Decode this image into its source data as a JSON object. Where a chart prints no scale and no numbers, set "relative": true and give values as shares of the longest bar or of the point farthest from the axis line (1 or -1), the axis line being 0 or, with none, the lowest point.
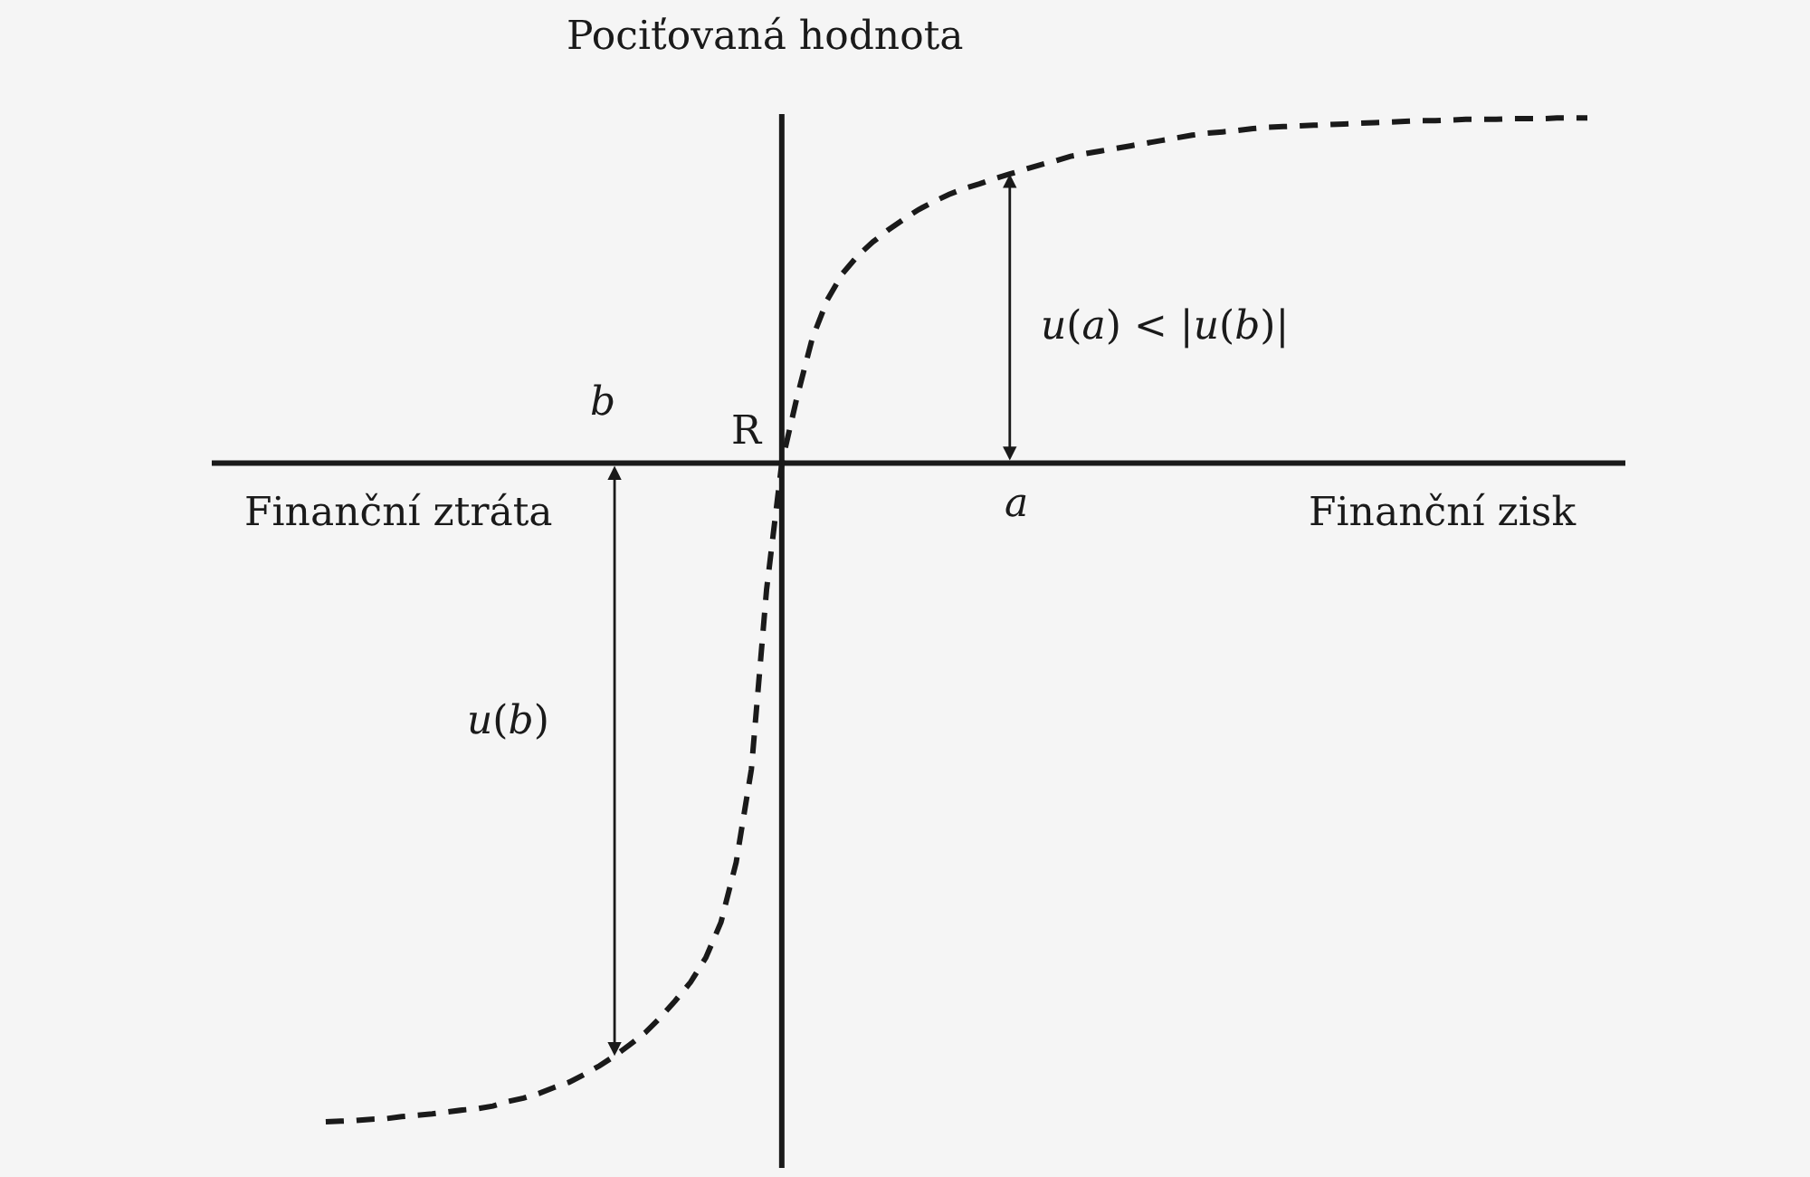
{
  "chart_data": {
    "type": "line",
    "relative": true,
    "line_style": "dashed",
    "ylabel": "Pociťovaná hodnota",
    "categories": [
      null,
      null,
      null,
      null,
      null,
      null,
      null,
      null,
      null,
      null,
      null,
      null,
      null,
      null,
      null,
      null,
      null,
      null,
      null,
      null,
      null,
      null,
      null,
      null,
      null,
      null,
      null,
      null,
      null,
      null,
      null,
      null,
      null,
      null,
      null,
      null,
      null,
      null,
      null,
      null,
      null,
      null,
      null,
      null,
      null,
      null,
      null,
      null,
      null,
      null,
      null,
      null,
      null,
      null,
      null,
      null,
      null,
      null,
      null,
      null,
      null,
      null,
      null,
      null,
      null,
      null,
      null,
      null,
      null,
      null,
      null,
      null,
      null,
      null,
      null,
      null,
      null,
      null,
      null,
      null,
      null,
      null,
      null,
      null
    ],
    "series": [
      {
        "color": "#1a1a1a",
        "values": [
          -1.0,
          -0.999,
          -0.998,
          -0.996,
          -0.995,
          -0.992,
          -0.99,
          -0.988,
          -0.985,
          -0.982,
          -0.98,
          -0.976,
          -0.969,
          -0.964,
          -0.957,
          -0.948,
          -0.94,
          -0.928,
          -0.915,
          -0.9,
          -0.883,
          -0.865,
          -0.842,
          -0.816,
          -0.788,
          -0.751,
          -0.697,
          -0.606,
          -0.465,
          -0.192,
          0,
          0.1,
          0.189,
          0.248,
          0.288,
          0.315,
          0.336,
          0.354,
          0.37,
          0.385,
          0.397,
          0.408,
          0.417,
          0.424,
          0.432,
          0.439,
          0.446,
          0.453,
          0.459,
          0.466,
          0.47,
          0.474,
          0.478,
          0.482,
          0.486,
          0.49,
          0.494,
          0.498,
          0.501,
          0.503,
          0.505,
          0.508,
          0.51,
          0.511,
          0.512,
          0.513,
          0.514,
          0.515,
          0.516,
          0.517,
          0.518,
          0.519,
          0.52,
          0.52,
          0.521,
          0.522,
          0.522,
          0.522,
          0.523,
          0.523,
          0.523,
          0.524,
          0.524,
          0.524
        ]
      }
    ],
    "annotations": [
      "Finanční ztráta",
      "Finanční zisk",
      "R",
      "b",
      "a",
      "u(a) < |u(b)|",
      "u(b)"
    ]
  }
}
